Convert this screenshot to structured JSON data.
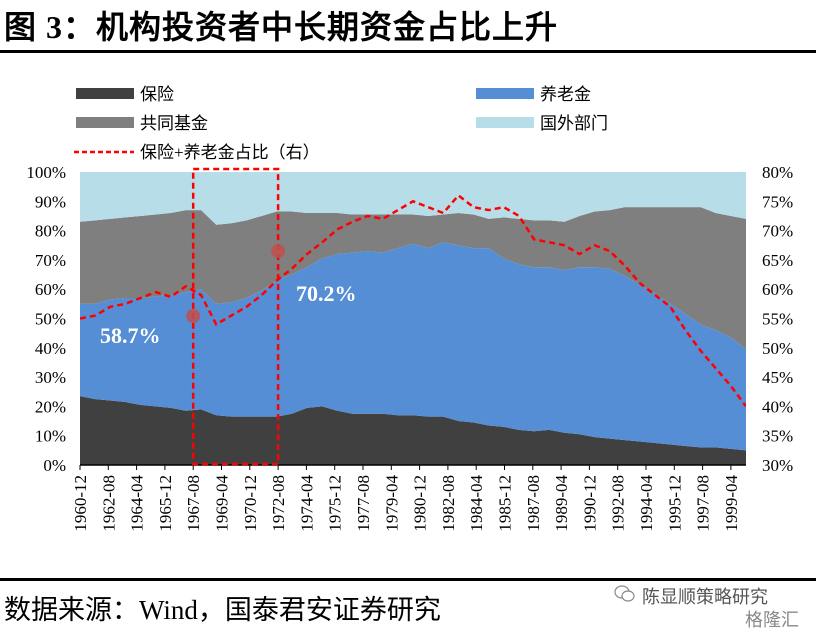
{
  "title": "图 3：机构投资者中长期资金占比上升",
  "source": "数据来源：Wind，国泰君安证券研究",
  "watermark": {
    "line1": "陈显顺策略研究",
    "line2": "格隆汇",
    "icon": "wechat-icon"
  },
  "colors": {
    "insurance": "#404040",
    "mutual_fund": "#7f7f7f",
    "pension": "#558ed5",
    "foreign": "#b7dde8",
    "ratio_line": "#ff0000",
    "highlight_dot": "#c0504d"
  },
  "chart_data": {
    "type": "area",
    "title": "",
    "stacked": true,
    "xlabel": "",
    "ylabel": "",
    "ylim": [
      0,
      100
    ],
    "y2lim": [
      30,
      80
    ],
    "yticks": [
      "0%",
      "10%",
      "20%",
      "30%",
      "40%",
      "50%",
      "60%",
      "70%",
      "80%",
      "90%",
      "100%"
    ],
    "y2ticks": [
      "30%",
      "35%",
      "40%",
      "45%",
      "50%",
      "55%",
      "60%",
      "65%",
      "70%",
      "75%",
      "80%"
    ],
    "xticks": [
      "1960-12",
      "1962-08",
      "1964-04",
      "1965-12",
      "1967-08",
      "1969-04",
      "1970-12",
      "1972-08",
      "1974-04",
      "1975-12",
      "1977-08",
      "1979-04",
      "1980-12",
      "1982-08",
      "1984-04",
      "1985-12",
      "1987-08",
      "1989-04",
      "1990-12",
      "1992-08",
      "1994-04",
      "1995-12",
      "1997-08",
      "1999-04"
    ],
    "x_months_from_start": [
      0,
      10,
      20,
      30,
      40,
      50,
      60,
      70,
      80,
      90,
      100,
      110,
      120,
      130,
      140,
      150,
      160,
      170,
      180,
      190,
      200,
      210,
      220,
      230,
      240
    ],
    "legend": {
      "position": "top",
      "entries": [
        "保险",
        "养老金",
        "共同基金",
        "国外部门",
        "保险+养老金占比（右）"
      ]
    },
    "series": [
      {
        "name": "保险",
        "axis": "left",
        "values": [
          23.5,
          22.5,
          22.0,
          21.5,
          20.5,
          20.0,
          19.5,
          18.5,
          19.0,
          17.0,
          16.5,
          16.5,
          16.5,
          16.5,
          17.5,
          19.5,
          20.0,
          18.5,
          17.5,
          17.5,
          17.5,
          17.0,
          17.0,
          16.5,
          16.5,
          15.0,
          14.5,
          13.5,
          13.0,
          12.0,
          11.5,
          12.0,
          11.0,
          10.5,
          9.5,
          9.0,
          8.5,
          8.0,
          7.5,
          7.0,
          6.5,
          6.0,
          6.0,
          5.5,
          5.0
        ]
      },
      {
        "name": "养老金",
        "axis": "left",
        "values": [
          31.5,
          32.5,
          34.5,
          35.5,
          36.5,
          37.5,
          38.5,
          40.5,
          41.0,
          38.0,
          39.0,
          40.5,
          43.0,
          46.5,
          47.5,
          48.0,
          50.5,
          53.5,
          55.0,
          55.5,
          55.0,
          57.0,
          58.5,
          57.5,
          59.5,
          60.0,
          59.5,
          60.5,
          57.5,
          56.5,
          56.0,
          55.5,
          55.5,
          57.0,
          58.0,
          58.0,
          56.0,
          53.5,
          51.0,
          48.0,
          45.0,
          42.0,
          40.0,
          38.0,
          34.5
        ]
      },
      {
        "name": "共同基金",
        "axis": "left",
        "values": [
          28.0,
          28.5,
          27.5,
          27.5,
          28.0,
          28.0,
          28.0,
          28.0,
          27.0,
          27.0,
          27.0,
          26.5,
          25.5,
          23.5,
          21.5,
          18.5,
          15.5,
          14.0,
          13.0,
          12.5,
          13.0,
          11.5,
          10.0,
          11.0,
          9.5,
          11.0,
          11.5,
          10.0,
          14.0,
          15.5,
          16.0,
          16.0,
          16.5,
          17.5,
          19.0,
          20.0,
          23.5,
          26.5,
          29.5,
          33.0,
          36.5,
          40.0,
          40.0,
          41.5,
          44.5
        ]
      },
      {
        "name": "国外部门",
        "axis": "left",
        "values": [
          17.0,
          16.5,
          16.0,
          15.5,
          15.0,
          14.5,
          14.0,
          13.0,
          13.0,
          18.0,
          17.5,
          16.5,
          15.0,
          13.5,
          13.5,
          14.0,
          14.0,
          14.0,
          14.5,
          14.5,
          14.5,
          14.5,
          14.5,
          15.0,
          14.5,
          14.0,
          14.5,
          16.0,
          15.5,
          16.0,
          16.5,
          16.5,
          17.0,
          15.0,
          13.5,
          13.0,
          12.0,
          12.0,
          12.0,
          12.0,
          12.0,
          12.0,
          14.0,
          15.0,
          16.0
        ]
      },
      {
        "name": "保险+养老金占比（右）",
        "axis": "right",
        "type": "line",
        "values": [
          55.0,
          55.5,
          57.0,
          57.5,
          58.5,
          59.5,
          58.7,
          60.5,
          59.0,
          54.0,
          55.5,
          57.0,
          59.0,
          61.5,
          63.5,
          66.0,
          68.0,
          70.2,
          71.5,
          72.5,
          72.0,
          73.5,
          75.0,
          74.0,
          73.0,
          76.0,
          74.0,
          73.5,
          74.0,
          72.5,
          68.5,
          68.0,
          67.5,
          66.0,
          67.5,
          66.5,
          64.0,
          61.0,
          59.0,
          57.0,
          53.0,
          49.5,
          46.5,
          43.5,
          40.0
        ]
      }
    ],
    "annotations": [
      {
        "text": "58.7%",
        "series": "保险+养老金占比（右）",
        "point": "1967-08"
      },
      {
        "text": "70.2%",
        "series": "保险+养老金占比（右）",
        "point": "1972-08"
      }
    ],
    "highlight_box": {
      "from": "1967-08",
      "to": "1972-08"
    }
  }
}
